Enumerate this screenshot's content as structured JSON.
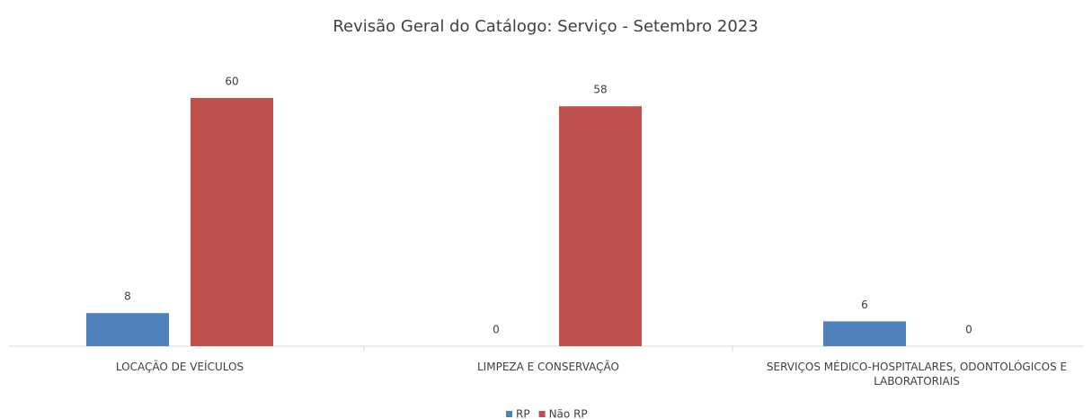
{
  "chart_data": {
    "type": "bar",
    "title": "Revisão Geral do Catálogo: Serviço - Setembro 2023",
    "categories": [
      "LOCAÇÃO DE VEÍCULOS",
      "LIMPEZA E CONSERVAÇÃO",
      "SERVIÇOS MÉDICO-HOSPITALARES, ODONTOLÓGICOS E LABORATORIAIS"
    ],
    "series": [
      {
        "name": "RP",
        "color": "#4f81bd",
        "values": [
          8,
          0,
          6
        ]
      },
      {
        "name": "Não RP",
        "color": "#c0504d",
        "values": [
          60,
          58,
          0
        ]
      }
    ],
    "legend": "bottom"
  }
}
